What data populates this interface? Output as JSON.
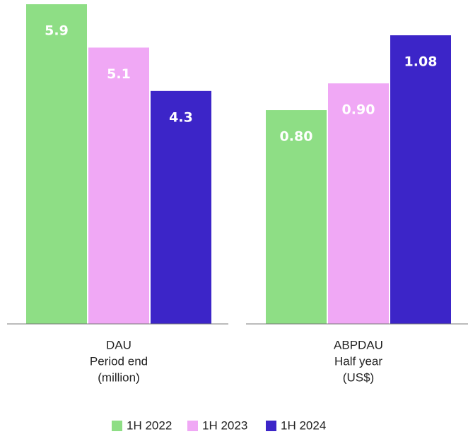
{
  "chart_data": {
    "type": "bar",
    "categories": [
      [
        "DAU",
        "Period end",
        "(million)"
      ],
      [
        "ABPDAU",
        "Half year",
        "(US$)"
      ]
    ],
    "series": [
      {
        "name": "1H 2022",
        "color": "#8ede85",
        "values": [
          5.9,
          0.8
        ],
        "value_labels": [
          "5.9",
          "0.80"
        ]
      },
      {
        "name": "1H 2023",
        "color": "#f0a8f5",
        "values": [
          5.1,
          0.9
        ],
        "value_labels": [
          "5.1",
          "0.90"
        ]
      },
      {
        "name": "1H 2024",
        "color": "#3c25c8",
        "values": [
          4.3,
          1.08
        ],
        "value_labels": [
          "4.3",
          "1.08"
        ]
      }
    ]
  }
}
